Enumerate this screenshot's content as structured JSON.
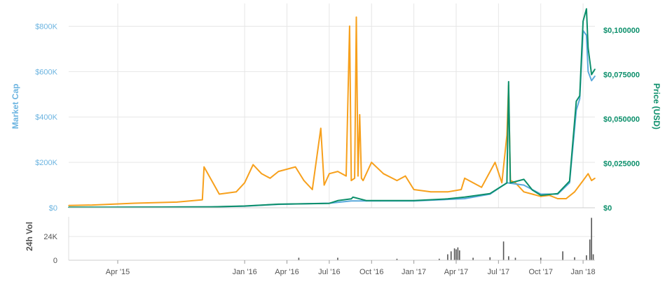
{
  "colors": {
    "market_cap": "#5aa9dc",
    "price": "#0c8f6b",
    "volume_line": "#f7a01c",
    "volume_bars": "#555555",
    "grid": "#e6e6e6",
    "left_axis_text": "#6cb4e0",
    "right_axis_text": "#0c8f6b",
    "x_axis_text": "#555555"
  },
  "chart_data": {
    "type": "line",
    "title": "",
    "x_ticks": [
      "Apr '15",
      "Jan '16",
      "Apr '16",
      "Jul '16",
      "Oct '16",
      "Jan '17",
      "Apr '17",
      "Jul '17",
      "Oct '17",
      "Jan '18"
    ],
    "x_tick_dates": [
      2015.25,
      2016.0,
      2016.25,
      2016.5,
      2016.75,
      2017.0,
      2017.25,
      2017.5,
      2017.75,
      2018.0
    ],
    "x_range": [
      2014.96,
      2018.07
    ],
    "left_axis": {
      "label": "Market Cap",
      "range": [
        0,
        900000
      ],
      "ticks": [
        0,
        200000,
        400000,
        600000,
        800000
      ],
      "tick_labels": [
        "$0",
        "$200K",
        "$400K",
        "$600K",
        "$800K"
      ]
    },
    "right_axis": {
      "label": "Price (USD)",
      "range": [
        0,
        0.115
      ],
      "ticks": [
        0,
        0.025,
        0.05,
        0.075,
        0.1
      ],
      "tick_labels": [
        "$0",
        "$0,025000",
        "$0,050000",
        "$0,075000",
        "$0,100000"
      ]
    },
    "volume_axis": {
      "label": "24h Vol",
      "ticks": [
        0,
        24000
      ],
      "tick_labels": [
        "0",
        "24K"
      ],
      "range": [
        0,
        44000
      ]
    },
    "series": [
      {
        "name": "Price (USD)",
        "axis": "right",
        "x": [
          2014.96,
          2015.2,
          2015.5,
          2015.8,
          2016.0,
          2016.2,
          2016.5,
          2016.55,
          2016.63,
          2016.64,
          2016.72,
          2016.8,
          2016.9,
          2017.0,
          2017.2,
          2017.3,
          2017.45,
          2017.55,
          2017.56,
          2017.57,
          2017.65,
          2017.7,
          2017.75,
          2017.85,
          2017.92,
          2017.96,
          2017.98,
          2018.0,
          2018.02,
          2018.03,
          2018.05,
          2018.07
        ],
        "values": [
          0.0003,
          0.0003,
          0.0004,
          0.0005,
          0.001,
          0.002,
          0.0025,
          0.004,
          0.005,
          0.006,
          0.004,
          0.004,
          0.004,
          0.004,
          0.005,
          0.006,
          0.008,
          0.014,
          0.071,
          0.014,
          0.016,
          0.01,
          0.007,
          0.008,
          0.015,
          0.06,
          0.063,
          0.105,
          0.112,
          0.09,
          0.075,
          0.078
        ]
      },
      {
        "name": "Market Cap",
        "axis": "left",
        "x": [
          2014.96,
          2015.2,
          2015.5,
          2015.8,
          2016.0,
          2016.2,
          2016.5,
          2016.63,
          2016.8,
          2017.0,
          2017.3,
          2017.45,
          2017.55,
          2017.65,
          2017.75,
          2017.85,
          2017.92,
          2017.96,
          2017.98,
          2018.0,
          2018.02,
          2018.03,
          2018.05,
          2018.07
        ],
        "values": [
          2000,
          2000,
          3000,
          4000,
          7000,
          15000,
          20000,
          30000,
          30000,
          30000,
          40000,
          60000,
          110000,
          100000,
          60000,
          60000,
          110000,
          430000,
          480000,
          780000,
          760000,
          600000,
          560000,
          580000
        ]
      },
      {
        "name": "24h Vol",
        "axis": "left",
        "x": [
          2014.96,
          2015.1,
          2015.35,
          2015.6,
          2015.75,
          2015.76,
          2015.85,
          2015.95,
          2016.0,
          2016.05,
          2016.1,
          2016.15,
          2016.2,
          2016.3,
          2016.35,
          2016.4,
          2016.45,
          2016.47,
          2016.5,
          2016.55,
          2016.6,
          2016.62,
          2016.63,
          2016.65,
          2016.66,
          2016.67,
          2016.68,
          2016.69,
          2016.7,
          2016.75,
          2016.82,
          2016.9,
          2016.95,
          2017.0,
          2017.1,
          2017.2,
          2017.28,
          2017.3,
          2017.35,
          2017.4,
          2017.48,
          2017.52,
          2017.55,
          2017.56,
          2017.57,
          2017.6,
          2017.65,
          2017.7,
          2017.75,
          2017.8,
          2017.85,
          2017.9,
          2017.95,
          2018.0,
          2018.03,
          2018.05,
          2018.07
        ],
        "values": [
          10000,
          12000,
          20000,
          25000,
          35000,
          180000,
          60000,
          70000,
          110000,
          190000,
          150000,
          130000,
          160000,
          180000,
          120000,
          80000,
          350000,
          100000,
          150000,
          160000,
          140000,
          800000,
          120000,
          130000,
          840000,
          140000,
          410000,
          130000,
          120000,
          200000,
          150000,
          120000,
          140000,
          80000,
          70000,
          70000,
          80000,
          130000,
          110000,
          90000,
          200000,
          110000,
          320000,
          540000,
          120000,
          110000,
          70000,
          60000,
          50000,
          55000,
          40000,
          40000,
          70000,
          120000,
          150000,
          120000,
          130000
        ]
      },
      {
        "name": "24h Vol bars",
        "axis": "volume",
        "x": [
          2016.32,
          2016.55,
          2016.9,
          2017.15,
          2017.2,
          2017.22,
          2017.24,
          2017.25,
          2017.26,
          2017.27,
          2017.35,
          2017.45,
          2017.53,
          2017.56,
          2017.6,
          2017.75,
          2017.88,
          2017.95,
          2018.02,
          2018.04,
          2018.05,
          2018.06
        ],
        "values": [
          2500,
          2500,
          1500,
          1500,
          6000,
          9000,
          12000,
          11000,
          13000,
          10000,
          2500,
          3000,
          19000,
          4000,
          2500,
          2500,
          9000,
          3000,
          5000,
          21000,
          43000,
          6000
        ]
      }
    ]
  }
}
